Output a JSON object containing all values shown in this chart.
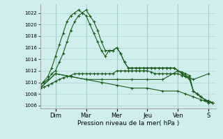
{
  "xlabel": "Pression niveau de la mer( hPa )",
  "background_color": "#d0eeee",
  "grid_color": "#aad4d4",
  "line_color": "#1a5c1a",
  "ylim": [
    1005.5,
    1023.5
  ],
  "yticks": [
    1006,
    1008,
    1010,
    1012,
    1014,
    1016,
    1018,
    1020,
    1022
  ],
  "day_labels": [
    "Dim",
    "Mar",
    "Mer",
    "Jeu",
    "Ven",
    "S"
  ],
  "day_positions": [
    24,
    72,
    120,
    168,
    216,
    264
  ],
  "xlim": [
    0,
    276
  ],
  "lines": [
    {
      "x": [
        0,
        6,
        12,
        18,
        24,
        30,
        36,
        42,
        48,
        54,
        60,
        66,
        72,
        78,
        84,
        90,
        96,
        102,
        108,
        114,
        120,
        126,
        132,
        138,
        144,
        150,
        156,
        162,
        168,
        174,
        180,
        186,
        192,
        198,
        204,
        210,
        216,
        222,
        228,
        234,
        240,
        246,
        252,
        258,
        264,
        270
      ],
      "y": [
        1009,
        1009.2,
        1009.5,
        1009.8,
        1010.2,
        1010.5,
        1010.8,
        1011.0,
        1011.2,
        1011.5,
        1011.5,
        1011.5,
        1011.5,
        1011.5,
        1011.5,
        1011.5,
        1011.5,
        1011.5,
        1011.5,
        1011.5,
        1012.0,
        1012.0,
        1012.0,
        1012.0,
        1012.0,
        1012.0,
        1012.0,
        1012.0,
        1012.0,
        1011.8,
        1011.5,
        1011.5,
        1011.5,
        1011.5,
        1011.5,
        1011.5,
        1011.5,
        1011.2,
        1011.0,
        1010.8,
        1008.5,
        1008.0,
        1007.5,
        1007.0,
        1006.8,
        1006.5
      ]
    },
    {
      "x": [
        0,
        6,
        12,
        18,
        24,
        30,
        36,
        42,
        48,
        54,
        60,
        66,
        72,
        78,
        84,
        90,
        96,
        102,
        108,
        114,
        120,
        126,
        132,
        138,
        144,
        150,
        156,
        162,
        168,
        174,
        180,
        186,
        192,
        198,
        204,
        210,
        216,
        222,
        228,
        234,
        240,
        246,
        252,
        258,
        264,
        270
      ],
      "y": [
        1009.5,
        1010,
        1010.5,
        1011.5,
        1012,
        1013.5,
        1015,
        1017,
        1019,
        1020.5,
        1021.5,
        1022,
        1022.5,
        1021.5,
        1020.5,
        1019,
        1017,
        1015.5,
        1015.5,
        1015.5,
        1016,
        1015,
        1013.5,
        1012.5,
        1012.5,
        1012.5,
        1012.5,
        1012.5,
        1012.5,
        1012.5,
        1012.5,
        1012.5,
        1012.5,
        1012.5,
        1012.5,
        1012.5,
        1012,
        1011.8,
        1011.5,
        1011.2,
        1008.5,
        1008.0,
        1007.5,
        1007.0,
        1006.8,
        1006.5
      ]
    },
    {
      "x": [
        0,
        6,
        12,
        18,
        24,
        30,
        36,
        42,
        48,
        54,
        60,
        66,
        72,
        78,
        84,
        90,
        96,
        102,
        108,
        114,
        120,
        126,
        132,
        138,
        144,
        150,
        156,
        162,
        168,
        174,
        180,
        186,
        192,
        198,
        204,
        210,
        216,
        222,
        228,
        234,
        240,
        246,
        252,
        258,
        264,
        270
      ],
      "y": [
        1009.5,
        1010.2,
        1011.0,
        1012.5,
        1014.5,
        1016.5,
        1018.5,
        1020.5,
        1021.5,
        1022.0,
        1022.5,
        1022.0,
        1021.5,
        1020.0,
        1018.5,
        1017.0,
        1015.5,
        1014.5,
        1015.5,
        1015.5,
        1016.0,
        1015.0,
        1013.5,
        1012.5,
        1012.5,
        1012.5,
        1012.5,
        1012.5,
        1012.5,
        1012.5,
        1012.5,
        1012.5,
        1012.5,
        1012.5,
        1012.5,
        1012.5,
        1012.0,
        1011.5,
        1011.0,
        1010.5,
        1008.5,
        1008.0,
        1007.5,
        1007.0,
        1006.5,
        1006.5
      ]
    },
    {
      "x": [
        0,
        24,
        48,
        72,
        96,
        120,
        144,
        168,
        192,
        216,
        240,
        264
      ],
      "y": [
        1009,
        1011.5,
        1011,
        1010.5,
        1010.5,
        1010.5,
        1010.5,
        1010.5,
        1010.5,
        1012,
        1010.5,
        1011.5
      ]
    },
    {
      "x": [
        0,
        24,
        48,
        72,
        96,
        120,
        144,
        168,
        192,
        216,
        228,
        240,
        252,
        264
      ],
      "y": [
        1009,
        1011.5,
        1011,
        1010.5,
        1010,
        1009.5,
        1009,
        1009,
        1008.5,
        1008.5,
        1008,
        1007.5,
        1007,
        1006.5
      ]
    }
  ]
}
